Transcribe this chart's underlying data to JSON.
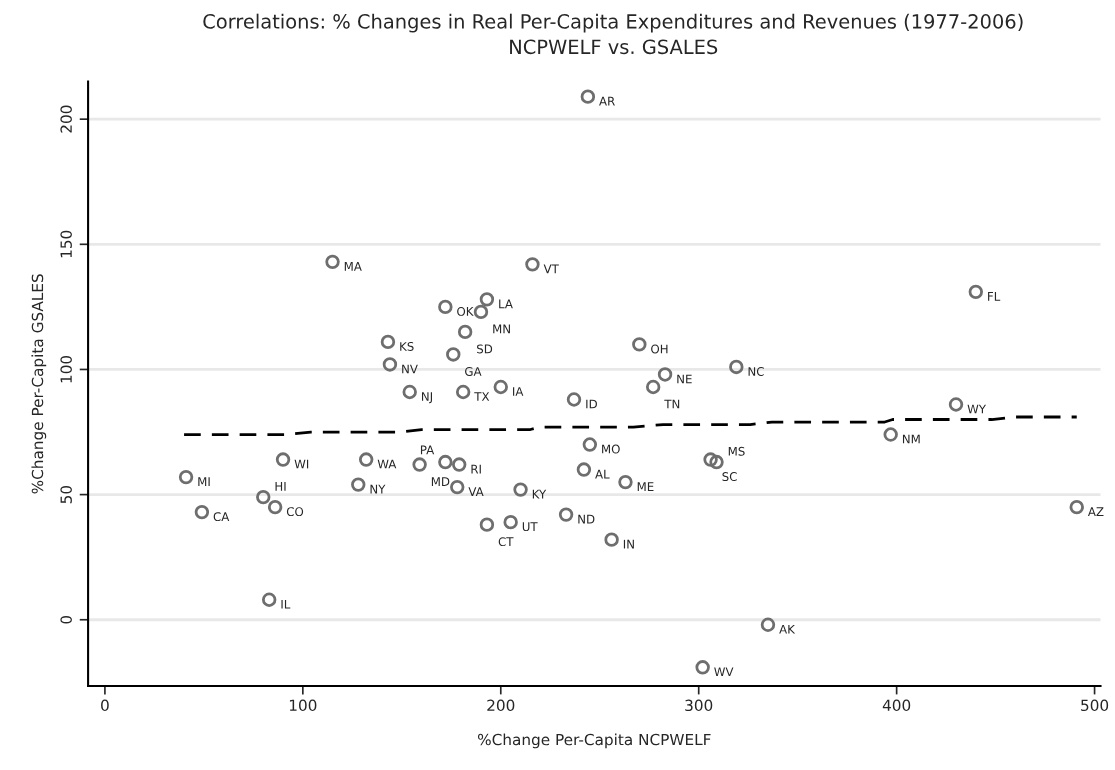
{
  "chart_data": {
    "type": "scatter",
    "title": "Correlations: % Changes in Real Per-Capita Expenditures and Revenues (1977-2006)",
    "subtitle": "NCPWELF vs. GSALES",
    "xlabel": "%Change Per-Capita NCPWELF",
    "ylabel": "%Change Per-Capita GSALES",
    "xlim": [
      -8.5,
      503
    ],
    "ylim": [
      -26.5,
      215
    ],
    "xticks": [
      0,
      100,
      200,
      300,
      400,
      500
    ],
    "yticks": [
      0,
      50,
      100,
      150,
      200
    ],
    "grid": "y",
    "legend": false,
    "series": [
      {
        "color": "#6e6e6e",
        "marker": "circle",
        "x": [
          244,
          115,
          216,
          440,
          193,
          172,
          190,
          182,
          143,
          270,
          176,
          144,
          319,
          283,
          200,
          277,
          154,
          181,
          237,
          430,
          397,
          245,
          90,
          132,
          306,
          172,
          309,
          159,
          179,
          242,
          41,
          263,
          128,
          178,
          210,
          80,
          86,
          491,
          49,
          233,
          205,
          193,
          256,
          83,
          335,
          302
        ],
        "values": [
          209,
          143,
          142,
          131,
          128,
          125,
          123,
          115,
          111,
          110,
          106,
          102,
          101,
          98,
          93,
          93,
          91,
          91,
          88,
          86,
          74,
          70,
          64,
          64,
          64,
          63,
          63,
          62,
          62,
          60,
          57,
          55,
          54,
          53,
          52,
          49,
          45,
          45,
          43,
          42,
          39,
          38,
          32,
          8,
          -2,
          -19
        ]
      },
      {
        "type": "line",
        "color": "#000000",
        "line_style": "dashed",
        "marker": "none",
        "x": [
          40,
          91,
          104,
          149,
          160,
          215,
          220,
          267,
          282,
          326,
          337,
          394,
          398,
          448,
          460,
          491
        ],
        "values": [
          74,
          74,
          75,
          75,
          76,
          76,
          77,
          77,
          78,
          78,
          79,
          79,
          80,
          80,
          81,
          81
        ]
      }
    ],
    "annotations": [
      {
        "text": "AR",
        "x": 244,
        "y": 209
      },
      {
        "text": "MA",
        "x": 115,
        "y": 143
      },
      {
        "text": "VT",
        "x": 216,
        "y": 142
      },
      {
        "text": "FL",
        "x": 440,
        "y": 131
      },
      {
        "text": "LA",
        "x": 193,
        "y": 128
      },
      {
        "text": "OK",
        "x": 172,
        "y": 125
      },
      {
        "text": "MN",
        "x": 190,
        "y": 123
      },
      {
        "text": "SD",
        "x": 182,
        "y": 115
      },
      {
        "text": "KS",
        "x": 143,
        "y": 111
      },
      {
        "text": "OH",
        "x": 270,
        "y": 110
      },
      {
        "text": "GA",
        "x": 176,
        "y": 106
      },
      {
        "text": "NV",
        "x": 144,
        "y": 102
      },
      {
        "text": "NC",
        "x": 319,
        "y": 101
      },
      {
        "text": "NE",
        "x": 283,
        "y": 98
      },
      {
        "text": "IA",
        "x": 200,
        "y": 93
      },
      {
        "text": "TN",
        "x": 277,
        "y": 93
      },
      {
        "text": "NJ",
        "x": 154,
        "y": 91
      },
      {
        "text": "TX",
        "x": 181,
        "y": 91
      },
      {
        "text": "ID",
        "x": 237,
        "y": 88
      },
      {
        "text": "WY",
        "x": 430,
        "y": 86
      },
      {
        "text": "NM",
        "x": 397,
        "y": 74
      },
      {
        "text": "MO",
        "x": 245,
        "y": 70
      },
      {
        "text": "WI",
        "x": 90,
        "y": 64
      },
      {
        "text": "WA",
        "x": 132,
        "y": 64
      },
      {
        "text": "SC",
        "x": 306,
        "y": 64
      },
      {
        "text": "PA",
        "x": 172,
        "y": 63
      },
      {
        "text": "MS",
        "x": 309,
        "y": 63
      },
      {
        "text": "MD",
        "x": 159,
        "y": 62
      },
      {
        "text": "RI",
        "x": 179,
        "y": 62
      },
      {
        "text": "AL",
        "x": 242,
        "y": 60
      },
      {
        "text": "MI",
        "x": 41,
        "y": 57
      },
      {
        "text": "ME",
        "x": 263,
        "y": 55
      },
      {
        "text": "NY",
        "x": 128,
        "y": 54
      },
      {
        "text": "VA",
        "x": 178,
        "y": 53
      },
      {
        "text": "KY",
        "x": 210,
        "y": 52
      },
      {
        "text": "HI",
        "x": 80,
        "y": 49
      },
      {
        "text": "CO",
        "x": 86,
        "y": 45
      },
      {
        "text": "AZ",
        "x": 491,
        "y": 45
      },
      {
        "text": "CA",
        "x": 49,
        "y": 43
      },
      {
        "text": "ND",
        "x": 233,
        "y": 42
      },
      {
        "text": "UT",
        "x": 205,
        "y": 39
      },
      {
        "text": "CT",
        "x": 193,
        "y": 38
      },
      {
        "text": "IN",
        "x": 256,
        "y": 32
      },
      {
        "text": "IL",
        "x": 83,
        "y": 8
      },
      {
        "text": "AK",
        "x": 335,
        "y": -2
      },
      {
        "text": "WV",
        "x": 302,
        "y": -19
      }
    ]
  }
}
